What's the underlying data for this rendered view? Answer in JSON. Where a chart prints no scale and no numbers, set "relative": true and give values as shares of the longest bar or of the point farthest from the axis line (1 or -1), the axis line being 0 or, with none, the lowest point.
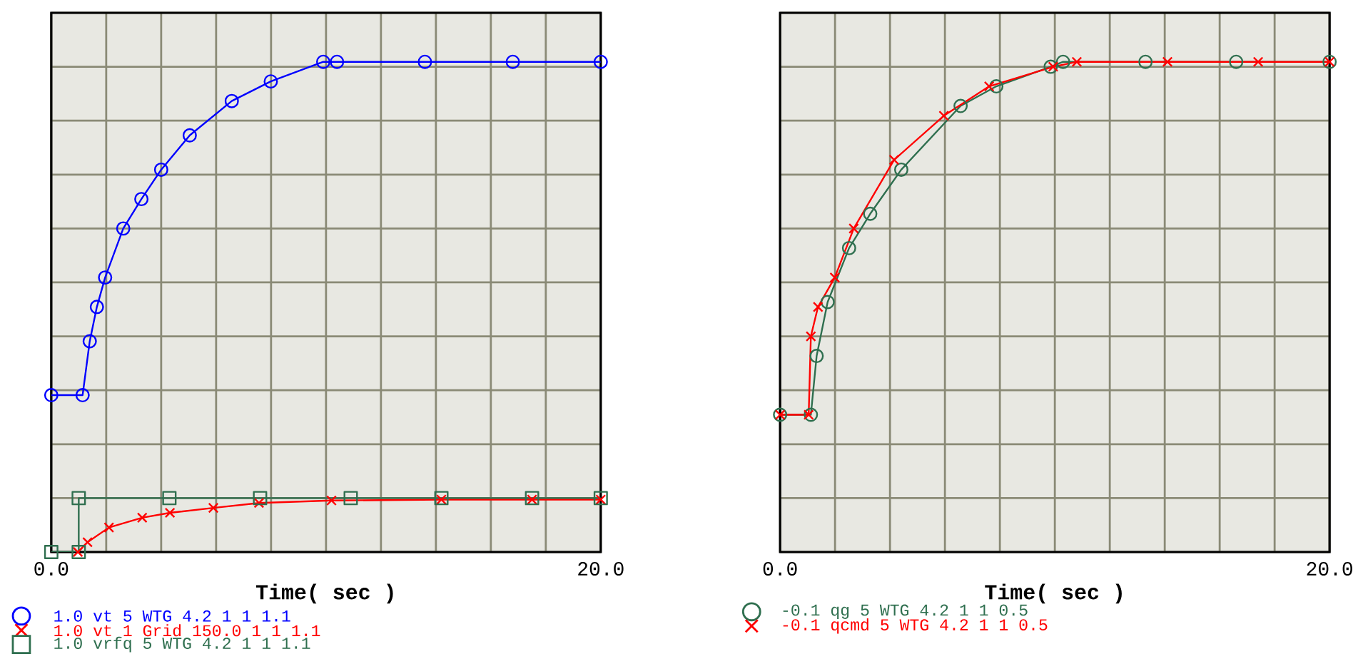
{
  "chart_data": [
    {
      "type": "line",
      "relative": true,
      "xlabel": "Time( sec )",
      "xlim": [
        0,
        20
      ],
      "xticks": [
        {
          "value": 0,
          "label": "0.0"
        },
        {
          "value": 2,
          "label": null
        },
        {
          "value": 4,
          "label": null
        },
        {
          "value": 6,
          "label": null
        },
        {
          "value": 8,
          "label": null
        },
        {
          "value": 10,
          "label": null
        },
        {
          "value": 12,
          "label": null
        },
        {
          "value": 14,
          "label": null
        },
        {
          "value": 16,
          "label": null
        },
        {
          "value": 18,
          "label": null
        },
        {
          "value": 20,
          "label": "20.0"
        }
      ],
      "grid": true,
      "legend": "bottom",
      "series": [
        {
          "name": "1.0 vt 5 WTG 4.2 1 1 1.1",
          "color": "#0000ff",
          "marker": "circle",
          "x": [
            0,
            1.14,
            1.4,
            1.66,
            1.96,
            2.62,
            3.28,
            4.0,
            5.04,
            6.57,
            7.99,
            9.9,
            10.4,
            13.6,
            16.8,
            20
          ],
          "values": [
            0.32,
            0.32,
            0.43,
            0.5,
            0.56,
            0.66,
            0.72,
            0.78,
            0.85,
            0.92,
            0.96,
            1.0,
            1.0,
            1.0,
            1.0,
            1.0
          ]
        },
        {
          "name": "1.0 vt 1 Grid 150.0 1 1 1.1",
          "color": "#ff0000",
          "marker": "cross",
          "x": [
            0.97,
            1.32,
            2.1,
            3.31,
            4.32,
            5.9,
            7.56,
            10.2,
            14.2,
            17.5,
            20
          ],
          "values": [
            0,
            0.02,
            0.05,
            0.07,
            0.08,
            0.09,
            0.1,
            0.105,
            0.107,
            0.107,
            0.107
          ]
        },
        {
          "name": "1.0 vrfq 5 WTG 4.2 1 1 1.1",
          "color": "#2f6f4f",
          "marker": "square",
          "x": [
            0,
            1.0,
            1.0,
            4.3,
            7.6,
            10.9,
            14.2,
            17.5,
            20
          ],
          "values": [
            0,
            0,
            0.11,
            0.11,
            0.11,
            0.11,
            0.11,
            0.11,
            0.11
          ]
        }
      ]
    },
    {
      "type": "line",
      "relative": true,
      "xlabel": "Time( sec )",
      "xlim": [
        0,
        20
      ],
      "xticks": [
        {
          "value": 0,
          "label": "0.0"
        },
        {
          "value": 2,
          "label": null
        },
        {
          "value": 4,
          "label": null
        },
        {
          "value": 6,
          "label": null
        },
        {
          "value": 8,
          "label": null
        },
        {
          "value": 10,
          "label": null
        },
        {
          "value": 12,
          "label": null
        },
        {
          "value": 14,
          "label": null
        },
        {
          "value": 16,
          "label": null
        },
        {
          "value": 18,
          "label": null
        },
        {
          "value": 20,
          "label": "20.0"
        }
      ],
      "grid": true,
      "legend": "bottom",
      "series": [
        {
          "name": "-0.1 qg 5 WTG 4.2 1 1 0.5",
          "color": "#2f6f4f",
          "marker": "circle",
          "x": [
            0,
            1.12,
            1.33,
            1.73,
            2.51,
            3.28,
            4.41,
            6.57,
            7.87,
            9.85,
            10.3,
            13.3,
            16.6,
            20
          ],
          "values": [
            0.28,
            0.28,
            0.4,
            0.51,
            0.62,
            0.69,
            0.78,
            0.91,
            0.95,
            0.99,
            1.0,
            1.0,
            1.0,
            1.0
          ]
        },
        {
          "name": "-0.1 qcmd 5 WTG 4.2 1 1 0.5",
          "color": "#ff0000",
          "marker": "cross",
          "x": [
            0,
            1.04,
            1.12,
            1.38,
            1.99,
            2.68,
            4.15,
            5.96,
            7.61,
            9.94,
            10.8,
            14.1,
            17.4,
            20
          ],
          "values": [
            0.28,
            0.28,
            0.44,
            0.5,
            0.56,
            0.66,
            0.8,
            0.89,
            0.95,
            0.99,
            1.0,
            1.0,
            1.0,
            1.0
          ]
        }
      ]
    }
  ]
}
